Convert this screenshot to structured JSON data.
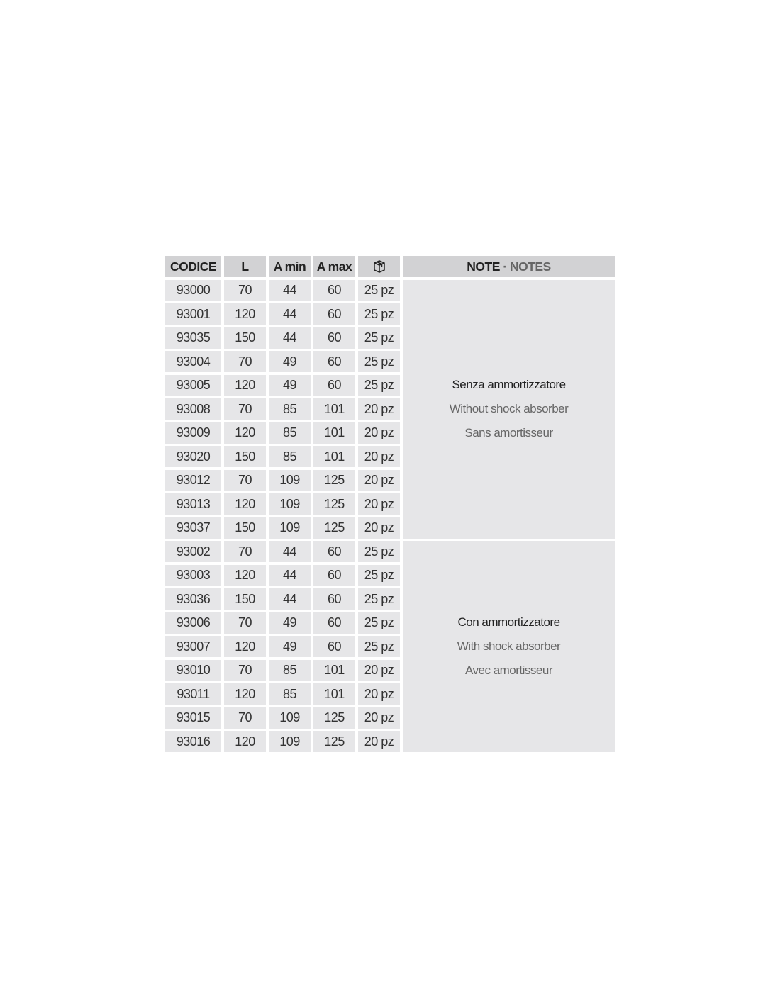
{
  "header": {
    "code": "CODICE",
    "l": "L",
    "amin": "A min",
    "amax": "A max",
    "package_icon": "box-icon",
    "note": "NOTE",
    "note_sep": " · ",
    "notes": "NOTES"
  },
  "groups": [
    {
      "note": [
        "Senza ammortizzatore",
        "Without shock absorber",
        "Sans amortisseur"
      ],
      "rows": [
        [
          "93000",
          "70",
          "44",
          "60",
          "25 pz"
        ],
        [
          "93001",
          "120",
          "44",
          "60",
          "25 pz"
        ],
        [
          "93035",
          "150",
          "44",
          "60",
          "25 pz"
        ],
        [
          "93004",
          "70",
          "49",
          "60",
          "25 pz"
        ],
        [
          "93005",
          "120",
          "49",
          "60",
          "25 pz"
        ],
        [
          "93008",
          "70",
          "85",
          "101",
          "20 pz"
        ],
        [
          "93009",
          "120",
          "85",
          "101",
          "20 pz"
        ],
        [
          "93020",
          "150",
          "85",
          "101",
          "20 pz"
        ],
        [
          "93012",
          "70",
          "109",
          "125",
          "20 pz"
        ],
        [
          "93013",
          "120",
          "109",
          "125",
          "20 pz"
        ],
        [
          "93037",
          "150",
          "109",
          "125",
          "20 pz"
        ]
      ]
    },
    {
      "note": [
        "Con ammortizzatore",
        "With shock absorber",
        "Avec amortisseur"
      ],
      "rows": [
        [
          "93002",
          "70",
          "44",
          "60",
          "25 pz"
        ],
        [
          "93003",
          "120",
          "44",
          "60",
          "25 pz"
        ],
        [
          "93036",
          "150",
          "44",
          "60",
          "25 pz"
        ],
        [
          "93006",
          "70",
          "49",
          "60",
          "25 pz"
        ],
        [
          "93007",
          "120",
          "49",
          "60",
          "25 pz"
        ],
        [
          "93010",
          "70",
          "85",
          "101",
          "20 pz"
        ],
        [
          "93011",
          "120",
          "85",
          "101",
          "20 pz"
        ],
        [
          "93015",
          "70",
          "109",
          "125",
          "20 pz"
        ],
        [
          "93016",
          "120",
          "109",
          "125",
          "20 pz"
        ]
      ]
    }
  ]
}
